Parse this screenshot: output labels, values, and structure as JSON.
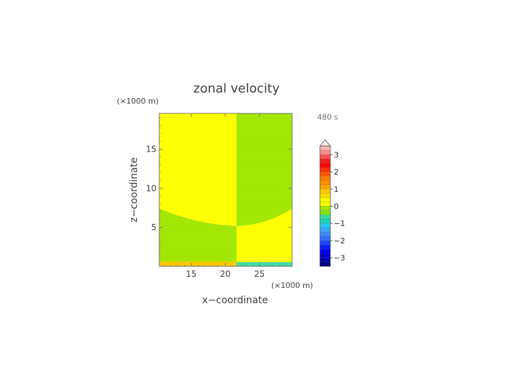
{
  "chart_data": {
    "type": "heatmap",
    "title": "zonal velocity",
    "time_label": "480 s",
    "xlabel": "x−coordinate",
    "ylabel": "z−coordinate",
    "x_unit_label": "(×1000 m)",
    "y_unit_label": "(×1000 m)",
    "xlim": [
      10.3,
      29.8
    ],
    "ylim": [
      0,
      19.6
    ],
    "x_ticks": [
      15,
      20,
      25
    ],
    "y_ticks": [
      5,
      10,
      15
    ],
    "colorbar": {
      "levels": [
        -3.5,
        -3.25,
        -3,
        -2.75,
        -2.5,
        -2.25,
        -2,
        -1.75,
        -1.5,
        -1.25,
        -1,
        -0.75,
        -0.5,
        -0.25,
        0,
        0.25,
        0.5,
        0.75,
        1,
        1.25,
        1.5,
        1.75,
        2,
        2.25,
        2.5,
        2.75,
        3,
        3.25,
        3.5
      ],
      "colors": [
        "#000080",
        "#0000a8",
        "#0000cc",
        "#0000ee",
        "#0a1eff",
        "#1e46ff",
        "#2e6eff",
        "#3c8cff",
        "#3ca8ff",
        "#28c8f0",
        "#1ed2b4",
        "#3cdca0",
        "#7ee600",
        "#a0e600",
        "#ffff00",
        "#ffff00",
        "#ffdc00",
        "#ffc800",
        "#ffa500",
        "#ff9000",
        "#ff7a00",
        "#ff5a00",
        "#ff3000",
        "#ff0000",
        "#f01e1e",
        "#ff5050",
        "#ff8c8c",
        "#ffb4b4"
      ],
      "tick_values": [
        -3,
        -2,
        -1,
        0,
        1,
        2,
        3
      ],
      "extend": "max"
    },
    "fields": {
      "upper_left": 0.1,
      "upper_right": -0.1,
      "lower_left": -0.1,
      "lower_right": 0.1,
      "bottom_left_strip": 0.8,
      "bottom_right_strip": -0.9,
      "interface_z_at_edges": 7.6,
      "interface_z_at_center": 5.2,
      "divide_x": 20
    }
  }
}
